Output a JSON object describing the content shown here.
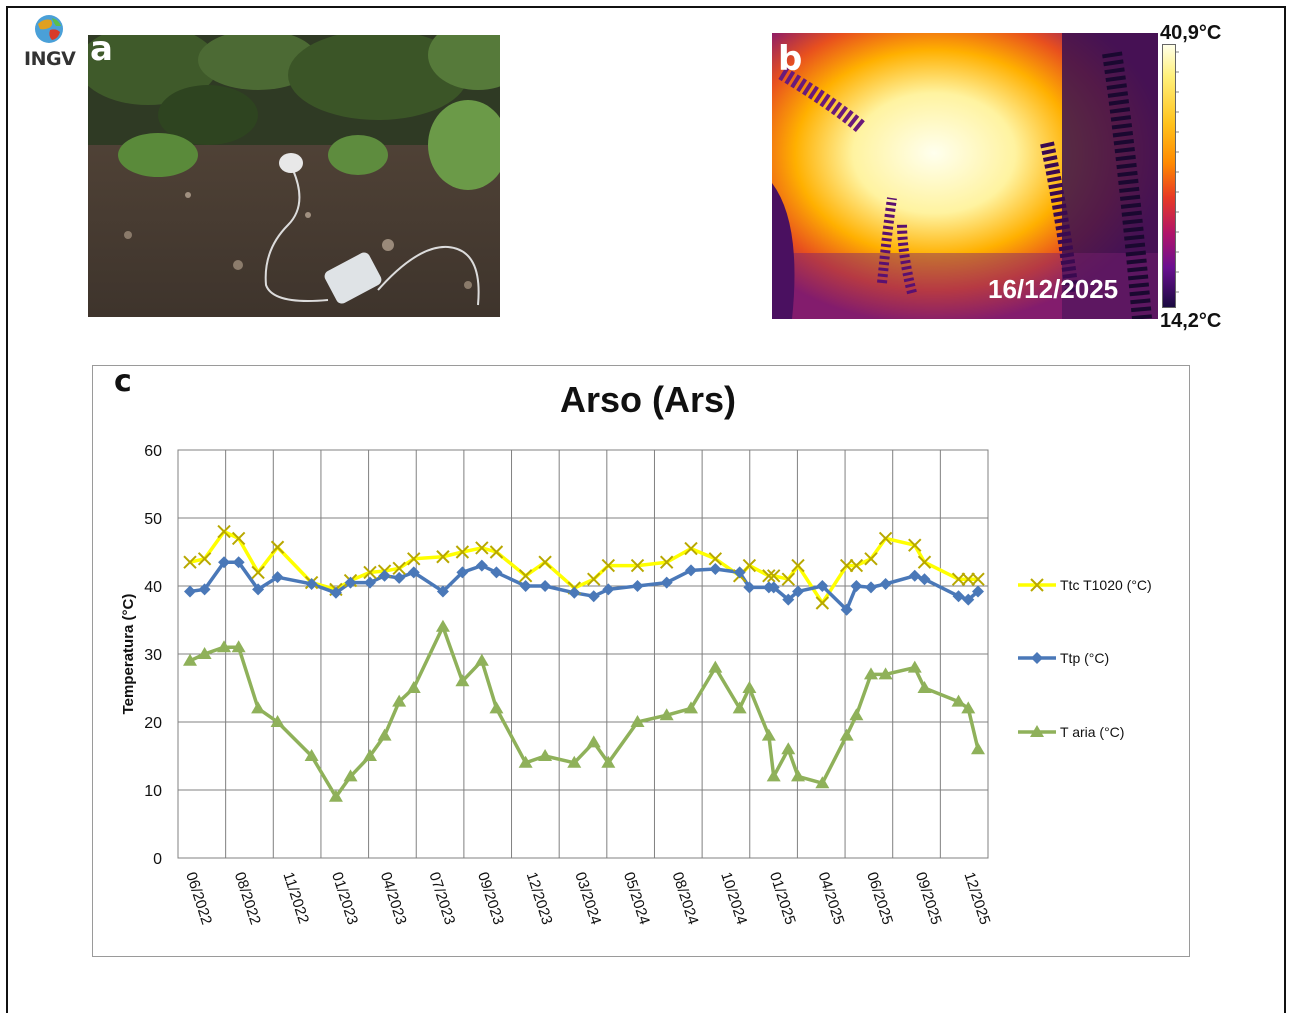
{
  "logo": {
    "text": "INGV"
  },
  "panels": {
    "a": "a",
    "b": "b",
    "c": "c"
  },
  "thermal": {
    "date": "16/12/2025",
    "max": "40,9°C",
    "min": "14,2°C"
  },
  "chart_data": {
    "type": "line",
    "title": "Arso (Ars)",
    "xlabel": "",
    "ylabel": "Temperatura (°C)",
    "ylim": [
      0,
      60
    ],
    "yticks": [
      0,
      10,
      20,
      30,
      40,
      50,
      60
    ],
    "grid": true,
    "legend_position": "right",
    "xtick_labels": [
      "06/2022",
      "08/2022",
      "11/2022",
      "01/2023",
      "04/2023",
      "07/2023",
      "09/2023",
      "12/2023",
      "03/2024",
      "05/2024",
      "08/2024",
      "10/2024",
      "01/2025",
      "04/2025",
      "06/2025",
      "09/2025",
      "12/2025"
    ],
    "series": [
      {
        "name": "Ttc T1020 (°C)",
        "color": "#ffff00",
        "marker": "x",
        "x": [
          0,
          0.3,
          0.7,
          1,
          1.4,
          1.8,
          2.5,
          3,
          3.3,
          3.7,
          4,
          4.3,
          4.6,
          5.2,
          5.6,
          6,
          6.3,
          6.9,
          7.3,
          7.9,
          8.3,
          8.6,
          9.2,
          9.8,
          10.3,
          10.8,
          11.3,
          11.5,
          11.9,
          12,
          12.3,
          12.5,
          13,
          13.5,
          13.7,
          14,
          14.3,
          14.9,
          15.1,
          15.8,
          16,
          16.2
        ],
        "values": [
          43.5,
          44,
          48,
          47,
          42,
          45.7,
          40.5,
          39.5,
          40.8,
          42,
          42.2,
          42.6,
          44,
          44.3,
          45,
          45.6,
          45,
          41.5,
          43.5,
          39.7,
          41,
          43,
          43,
          43.5,
          45.5,
          44,
          41.5,
          43,
          41.5,
          41.5,
          41,
          43,
          37.5,
          43,
          43,
          44,
          47,
          46,
          43.5,
          41,
          41,
          41
        ]
      },
      {
        "name": "Ttp (°C)",
        "color": "#4a78b8",
        "marker": "diamond",
        "x": [
          0,
          0.3,
          0.7,
          1,
          1.4,
          1.8,
          2.5,
          3,
          3.3,
          3.7,
          4,
          4.3,
          4.6,
          5.2,
          5.6,
          6,
          6.3,
          6.9,
          7.3,
          7.9,
          8.3,
          8.6,
          9.2,
          9.8,
          10.3,
          10.8,
          11.3,
          11.5,
          11.9,
          12,
          12.3,
          12.5,
          13,
          13.5,
          13.7,
          14,
          14.3,
          14.9,
          15.1,
          15.8,
          16,
          16.2
        ],
        "values": [
          39.2,
          39.5,
          43.5,
          43.5,
          39.5,
          41.3,
          40.3,
          39,
          40.5,
          40.5,
          41.5,
          41.2,
          42,
          39.2,
          42,
          43,
          42,
          40,
          40,
          39,
          38.5,
          39.5,
          40,
          40.5,
          42.3,
          42.5,
          42,
          39.8,
          39.8,
          39.8,
          38,
          39.2,
          40,
          36.5,
          40,
          39.8,
          40.3,
          41.5,
          41,
          38.5,
          38,
          39.2
        ]
      },
      {
        "name": "T aria (°C)",
        "color": "#8fb15a",
        "marker": "triangle",
        "x": [
          0,
          0.3,
          0.7,
          1,
          1.4,
          1.8,
          2.5,
          3,
          3.3,
          3.7,
          4,
          4.3,
          4.6,
          5.2,
          5.6,
          6,
          6.3,
          6.9,
          7.3,
          7.9,
          8.3,
          8.6,
          9.2,
          9.8,
          10.3,
          10.8,
          11.3,
          11.5,
          11.9,
          12,
          12.3,
          12.5,
          13,
          13.5,
          13.7,
          14,
          14.3,
          14.9,
          15.1,
          15.8,
          16,
          16.2
        ],
        "values": [
          29,
          30,
          31,
          31,
          22,
          20,
          15,
          9,
          12,
          15,
          18,
          23,
          25,
          34,
          26,
          29,
          22,
          14,
          15,
          14,
          17,
          14,
          20,
          21,
          22,
          28,
          22,
          25,
          18,
          12,
          16,
          12,
          11,
          18,
          21,
          27,
          27,
          28,
          25,
          23,
          22,
          16
        ]
      }
    ]
  }
}
